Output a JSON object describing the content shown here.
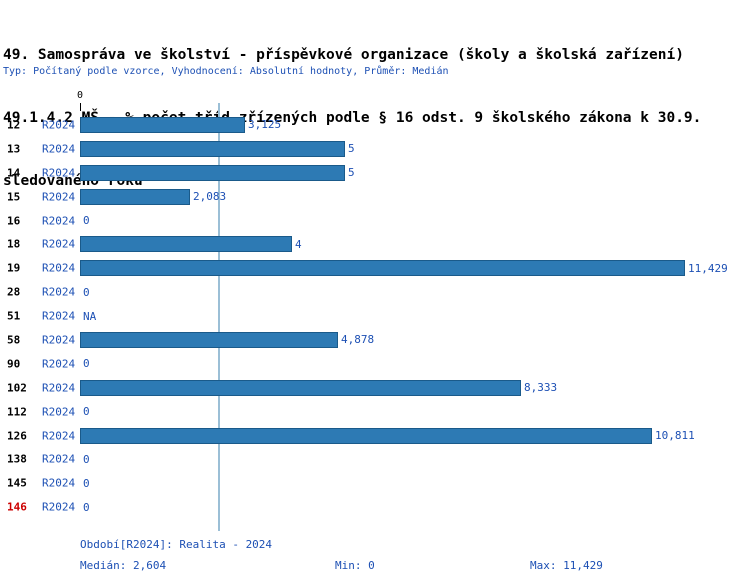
{
  "title": {
    "line1": "49. Samospráva ve školství - příspěvkové organizace (školy a školská zařízení)",
    "line2": "49.1.4.2 MŠ - % počet tříd zřízených podle § 16 odst. 9 školského zákona k 30.9.",
    "line3": "sledovaného roku"
  },
  "subtitle": "Typ: Počítaný podle vzorce, Vyhodnocení: Absolutní hodnoty, Průměr: Medián",
  "chart_data": {
    "type": "bar",
    "orientation": "horizontal",
    "title": "49.1.4.2 MŠ - % počet tříd zřízených podle § 16 odst. 9 školského zákona k 30.9. sledovaného roku",
    "series_label": "R2024",
    "categories": [
      "12",
      "13",
      "14",
      "15",
      "16",
      "18",
      "19",
      "28",
      "51",
      "58",
      "90",
      "102",
      "112",
      "126",
      "138",
      "145",
      "146"
    ],
    "values": [
      3.125,
      5,
      5,
      2.083,
      0,
      4,
      11.429,
      0,
      null,
      4.878,
      0,
      8.333,
      0,
      10.811,
      0,
      0,
      0
    ],
    "value_labels": [
      "3,125",
      "5",
      "5",
      "2,083",
      "0",
      "4",
      "11,429",
      "0",
      "NA",
      "4,878",
      "0",
      "8,333",
      "0",
      "10,811",
      "0",
      "0",
      "0"
    ],
    "xlim": [
      0,
      11.429
    ],
    "x_origin_label": "0",
    "median": 2.604,
    "min": 0,
    "max": 11.429,
    "highlight_category": "146",
    "grid": false,
    "legend_position": "none"
  },
  "footer": {
    "period": "Období[R2024]: Realita - 2024",
    "median": "Medián: 2,604",
    "min": "Min: 0",
    "max": "Max: 11,429"
  },
  "colors": {
    "bar": "#2d7ab4",
    "bar_border": "#1a5a8a",
    "blue_text": "#1d50b4",
    "median_line": "#9bbfd6",
    "highlight": "#cc0000",
    "title_text": "#000000",
    "background": "#ffffff"
  }
}
